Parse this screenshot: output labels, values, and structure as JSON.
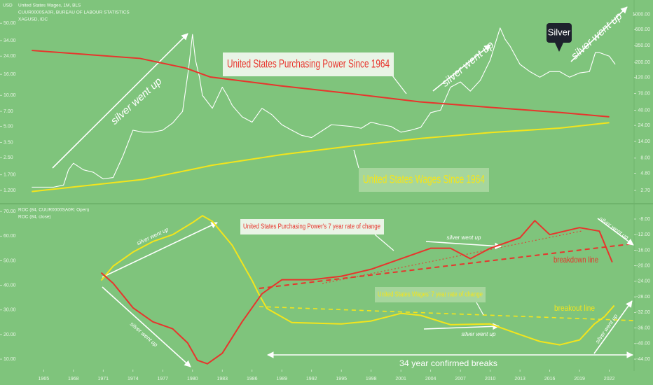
{
  "chart_data": [
    {
      "type": "line",
      "log_scale": true,
      "y_axis_label": "USD",
      "header": [
        "United States Wages, 1M, BLS",
        "CUUR0000SA0R, BUREAU OF LABOUR STATISTICS",
        "XAGUSD, IDC"
      ],
      "xlim": [
        1960.6,
        2024.5
      ],
      "ylim": [
        0.906,
        84
      ],
      "yticks": [
        {
          "value": 1.2,
          "label": "1.200"
        },
        {
          "value": 1.7,
          "label": "1.700"
        },
        {
          "value": 2.5,
          "label": "2.50"
        },
        {
          "value": 3.5,
          "label": "3.50"
        },
        {
          "value": 5,
          "label": "5.00"
        },
        {
          "value": 7,
          "label": "7.00"
        },
        {
          "value": 10,
          "label": "10.00"
        },
        {
          "value": 16,
          "label": "16.00"
        },
        {
          "value": 24,
          "label": "24.00"
        },
        {
          "value": 34,
          "label": "34.00"
        },
        {
          "value": 50,
          "label": "50.00"
        }
      ],
      "y2lim": [
        1.77,
        1623
      ],
      "y2ticks": [
        {
          "value": 2.7,
          "label": "2.70"
        },
        {
          "value": 4.8,
          "label": "4.80"
        },
        {
          "value": 8,
          "label": "8.00"
        },
        {
          "value": 14,
          "label": "14.00"
        },
        {
          "value": 24,
          "label": "24.00"
        },
        {
          "value": 40,
          "label": "40.00"
        },
        {
          "value": 70,
          "label": "70.00"
        },
        {
          "value": 120,
          "label": "120.00"
        },
        {
          "value": 200,
          "label": "200.00"
        },
        {
          "value": 350,
          "label": "350.00"
        },
        {
          "value": 600,
          "label": "600.00"
        },
        {
          "value": 1000,
          "label": "1000.00"
        }
      ],
      "series": [
        {
          "color": "#ffffff",
          "x": [
            1963.8,
            1965,
            1966,
            1967,
            1967.5,
            1968,
            1969,
            1970,
            1971,
            1972,
            1973,
            1974,
            1975,
            1976,
            1977,
            1978,
            1979,
            1979.6,
            1980.0,
            1980.3,
            1980.7,
            1981,
            1982,
            1983,
            1983.5,
            1984,
            1985,
            1986,
            1987,
            1988,
            1989,
            1990,
            1991,
            1992,
            1993,
            1994,
            1995,
            1996,
            1997,
            1998,
            1999,
            2000,
            2001,
            2002,
            2003,
            2004,
            2005,
            2006,
            2007,
            2008,
            2009,
            2010,
            2011,
            2011.5,
            2012,
            2013,
            2014,
            2015,
            2016,
            2017,
            2018,
            2019,
            2020,
            2020.6,
            2021,
            2022,
            2022.6
          ],
          "values": [
            1.29,
            1.29,
            1.29,
            1.35,
            1.9,
            2.2,
            1.9,
            1.8,
            1.55,
            1.6,
            2.6,
            4.6,
            4.4,
            4.4,
            4.6,
            5.4,
            7,
            18,
            39,
            22,
            15,
            10,
            7.5,
            12,
            10,
            8,
            6.2,
            5.5,
            7.5,
            6.5,
            5.2,
            4.6,
            4.1,
            3.9,
            4.5,
            5.2,
            5.1,
            5.0,
            4.8,
            5.5,
            5.2,
            5.0,
            4.4,
            4.6,
            4.9,
            6.8,
            7.2,
            12,
            13.5,
            11,
            14,
            22,
            45,
            35,
            30,
            20,
            17,
            15,
            17,
            17,
            15,
            16.5,
            17,
            26,
            26,
            24,
            20
          ]
        },
        {
          "color": "#e8342c",
          "axis": "y2",
          "x": [
            1963.8,
            1974.7,
            1979.3,
            1981.8,
            1988.8,
            1995.9,
            2002.9,
            2010,
            2017.1,
            2022
          ],
          "values": [
            298,
            228,
            165,
            122,
            91,
            70,
            53,
            44,
            37,
            32
          ]
        },
        {
          "color": "#f3e51c",
          "axis": "y2",
          "x": [
            1963.8,
            1975,
            1982,
            1989,
            1996,
            2003,
            2010,
            2017,
            2022
          ],
          "values": [
            2.6,
            3.9,
            6.3,
            9.0,
            12.0,
            15.5,
            18.9,
            21.9,
            26.3
          ]
        }
      ],
      "annotations": [
        "silver went up",
        "United States Purchasing Power Since 1964",
        "silver went up",
        "Silver",
        "silver went up",
        "United States Wages Since 1964"
      ]
    },
    {
      "type": "line",
      "header": [
        "ROC (84, CUUR0000SA0R: Open)",
        "ROC (84, close)"
      ],
      "xlim": [
        1960.6,
        2024.5
      ],
      "xticks": [
        1965,
        1968,
        1971,
        1974,
        1977,
        1980,
        1983,
        1986,
        1989,
        1992,
        1995,
        1998,
        2001,
        2004,
        2007,
        2010,
        2013,
        2016,
        2019,
        2022
      ],
      "ylim": [
        6.6,
        72.9
      ],
      "yticks": [
        {
          "value": 10,
          "label": "10.00"
        },
        {
          "value": 20,
          "label": "20.00"
        },
        {
          "value": 30,
          "label": "30.00"
        },
        {
          "value": 40,
          "label": "40.00"
        },
        {
          "value": 50,
          "label": "50.00"
        },
        {
          "value": 60,
          "label": "60.00"
        },
        {
          "value": 70,
          "label": "70.00"
        }
      ],
      "y2lim": [
        -46.15,
        -4.23
      ],
      "y2ticks": [
        {
          "value": -8,
          "label": "-8.00"
        },
        {
          "value": -12,
          "label": "-12.00"
        },
        {
          "value": -16,
          "label": "-16.00"
        },
        {
          "value": -20,
          "label": "-20.00"
        },
        {
          "value": -24,
          "label": "-24.00"
        },
        {
          "value": -28,
          "label": "-28.00"
        },
        {
          "value": -32,
          "label": "-32.00"
        },
        {
          "value": -36,
          "label": "-36.00"
        },
        {
          "value": -40,
          "label": "-40.00"
        },
        {
          "value": -44,
          "label": "-44.00"
        }
      ],
      "series": [
        {
          "color": "#f3e51c",
          "x": [
            1970.8,
            1972,
            1974,
            1976,
            1978,
            1980,
            1981,
            1982,
            1984,
            1986,
            1986.7,
            1987.5,
            1990,
            1995,
            1998,
            2001,
            2003,
            2006,
            2010,
            2013,
            2015,
            2017,
            2019,
            2020.5,
            2021.5,
            2022.5
          ],
          "values": [
            42,
            47.8,
            53.5,
            57.8,
            60.6,
            65.5,
            68.3,
            66,
            56.3,
            42,
            36.3,
            30.6,
            24.9,
            24.3,
            25.5,
            28.6,
            27.8,
            24,
            24.3,
            20,
            17.2,
            15.8,
            17.8,
            24.3,
            27.2,
            31.8
          ]
        },
        {
          "color": "#e8342c",
          "axis": "y2",
          "x": [
            1970.8,
            1972,
            1974,
            1976,
            1978,
            1979.5,
            1980.5,
            1981.5,
            1983,
            1985,
            1987,
            1989,
            1992,
            1995,
            1998,
            2001,
            2004,
            2006,
            2008,
            2010,
            2013,
            2014.5,
            2016,
            2019,
            2021,
            2022.3
          ],
          "values": [
            -21.8,
            -24.5,
            -30.8,
            -34.4,
            -36.2,
            -39.8,
            -44.3,
            -45.2,
            -42.5,
            -34.4,
            -27.2,
            -23.6,
            -23.6,
            -22.7,
            -20.9,
            -18.2,
            -15.5,
            -15.5,
            -18.2,
            -15.5,
            -12.8,
            -8.4,
            -12,
            -10.2,
            -11.1,
            -19.1
          ]
        }
      ],
      "annotations": [
        "United States Purchasing Power's 7 year rate of change",
        "silver went up",
        "silver went up",
        "silver went up",
        "silver went up",
        "silver went up",
        "silver went up",
        "breakdown line",
        "United States Wages' 7 year rate of change",
        "breakout line",
        "34 year confirmed breaks"
      ]
    }
  ]
}
